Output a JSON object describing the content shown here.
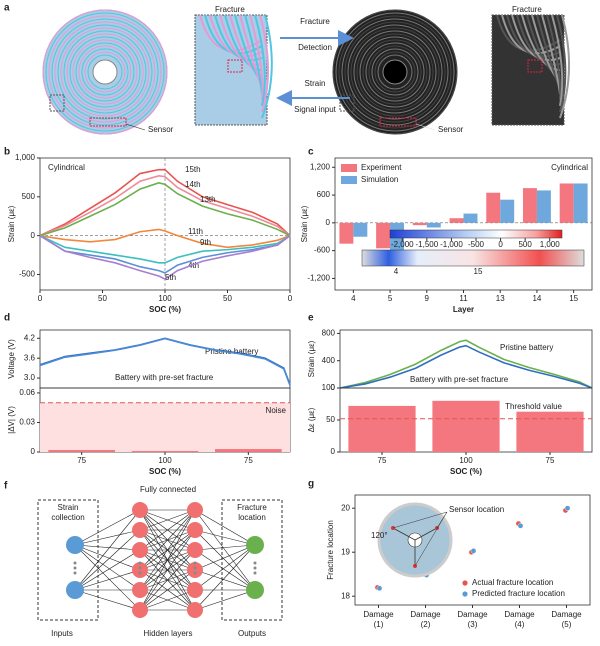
{
  "diagram_a": {
    "panel": "a",
    "fracture_left": "Fracture",
    "detection": [
      "Fracture",
      "Detection"
    ],
    "signal": [
      "Strain",
      "Signal input"
    ],
    "sensor_left": "Sensor",
    "fracture_right": "Fracture",
    "sensor_right": "Sensor"
  },
  "diagram_f": {
    "panel": "f",
    "strain_collection": [
      "Strain",
      "collection"
    ],
    "fully_connected": "Fully connected",
    "fracture_location": [
      "Fracture",
      "location"
    ],
    "inputs": "Inputs",
    "hidden": "Hidden layers",
    "outputs": "Outputs"
  },
  "chart_data": [
    {
      "type": "line",
      "panel": "b",
      "annotation": "Cylindrical",
      "xlabel": "SOC (%)",
      "ylabel": "Strain (με)",
      "x": [
        0,
        20,
        40,
        60,
        80,
        95,
        100,
        110,
        130,
        150,
        170,
        190,
        200
      ],
      "xlim": [
        0,
        200
      ],
      "xticks": [
        0,
        50,
        100,
        {
          "value": 150,
          "label": "50"
        },
        {
          "value": 200,
          "label": "0"
        }
      ],
      "ylim": [
        -700,
        1000
      ],
      "yticks": [
        {
          "value": 1000,
          "label": "1,000"
        },
        500,
        0,
        -500
      ],
      "series": [
        {
          "name": "15th",
          "color": "#e8534f",
          "values": [
            0,
            150,
            350,
            550,
            800,
            850,
            850,
            700,
            500,
            400,
            300,
            150,
            0
          ]
        },
        {
          "name": "14th",
          "color": "#f08a9a",
          "values": [
            0,
            130,
            300,
            480,
            700,
            770,
            760,
            620,
            450,
            350,
            250,
            120,
            0
          ]
        },
        {
          "name": "13th",
          "color": "#6ab04c",
          "values": [
            0,
            100,
            250,
            400,
            600,
            680,
            660,
            540,
            380,
            280,
            200,
            80,
            0
          ]
        },
        {
          "name": "11th",
          "color": "#f0883e",
          "values": [
            0,
            -50,
            -80,
            -50,
            50,
            80,
            60,
            0,
            -100,
            -150,
            -120,
            -60,
            0
          ]
        },
        {
          "name": "9th",
          "color": "#3bbfbf",
          "values": [
            0,
            -150,
            -200,
            -250,
            -300,
            -350,
            -350,
            -280,
            -200,
            -180,
            -150,
            -100,
            0
          ]
        },
        {
          "name": "4th",
          "color": "#5b8fd6",
          "values": [
            0,
            -200,
            -250,
            -300,
            -400,
            -450,
            -480,
            -380,
            -280,
            -220,
            -180,
            -120,
            0
          ]
        },
        {
          "name": "5th",
          "color": "#a77fd1",
          "values": [
            0,
            -200,
            -280,
            -350,
            -450,
            -520,
            -560,
            -450,
            -330,
            -260,
            -200,
            -120,
            0
          ]
        }
      ]
    },
    {
      "type": "bar",
      "panel": "c",
      "annotation": "Cylindrical",
      "xlabel": "Layer",
      "ylabel": "Strain (με)",
      "categories": [
        "4",
        "5",
        "9",
        "11",
        "13",
        "14",
        "15"
      ],
      "ylim": [
        -1450,
        1400
      ],
      "yticks": [
        {
          "value": 1200,
          "label": "1,200"
        },
        600,
        0,
        -600,
        {
          "value": -1200,
          "label": "-1,200"
        }
      ],
      "series": [
        {
          "name": "Experiment",
          "color": "#f4777f",
          "values": [
            -450,
            -550,
            -50,
            100,
            650,
            750,
            850
          ]
        },
        {
          "name": "Simulation",
          "color": "#6fa8dc",
          "values": [
            -300,
            -650,
            -100,
            200,
            500,
            700,
            850
          ]
        }
      ],
      "colorbar": {
        "lim": [
          -2250,
          1250
        ],
        "ticks": [
          {
            "value": -2000,
            "label": "-2,000"
          },
          {
            "value": -1500,
            "label": "-1,500"
          },
          {
            "value": -1000,
            "label": "-1,000"
          },
          -500,
          0,
          500,
          {
            "value": 1000,
            "label": "1,000"
          }
        ],
        "strip_labels": [
          "4",
          "15"
        ]
      }
    },
    {
      "type": "line",
      "panel": "d",
      "ylabel": "Voltage (V)",
      "x": [
        0,
        20,
        40,
        60,
        80,
        100,
        120,
        140,
        160,
        180,
        195,
        200
      ],
      "xlim": [
        0,
        200
      ],
      "ylim": [
        2.7,
        4.45
      ],
      "yticks": [
        {
          "value": 4.2,
          "label": "4.2"
        },
        {
          "value": 3.6,
          "label": "3.6"
        },
        {
          "value": 3,
          "label": "3.0"
        }
      ],
      "series": [
        {
          "name": "Pristine battery",
          "color": "#2f6fc1",
          "values": [
            3.4,
            3.65,
            3.75,
            3.85,
            4.0,
            4.2,
            4.0,
            3.85,
            3.75,
            3.6,
            3.3,
            2.8
          ]
        },
        {
          "name": "Battery with pre-set fracture",
          "color": "#4a8ad6",
          "values": [
            3.38,
            3.63,
            3.73,
            3.84,
            3.99,
            4.19,
            3.99,
            3.84,
            3.73,
            3.58,
            3.28,
            2.78
          ]
        }
      ]
    },
    {
      "type": "bar",
      "xlabel": "SOC (%)",
      "ylabel": "|ΔV| (V)",
      "categories": [
        "75",
        "100",
        "75"
      ],
      "ylim": [
        0,
        0.065
      ],
      "yticks": [
        0,
        0.03,
        0.06
      ],
      "color": "#f4777f",
      "values": [
        0.002,
        0.001,
        0.003
      ],
      "threshold": {
        "value": 0.05,
        "label": "Noise",
        "shaded": true
      }
    },
    {
      "type": "line",
      "panel": "e",
      "ylabel": "Strain (με)",
      "x": [
        0,
        20,
        40,
        60,
        80,
        95,
        100,
        110,
        130,
        150,
        170,
        190,
        200
      ],
      "xlim": [
        0,
        200
      ],
      "ylim": [
        0,
        850
      ],
      "yticks": [
        0,
        400,
        800
      ],
      "series": [
        {
          "name": "Pristine battery",
          "color": "#6ab04c",
          "values": [
            0,
            80,
            200,
            350,
            550,
            680,
            700,
            600,
            420,
            300,
            200,
            90,
            0
          ]
        },
        {
          "name": "Battery with pre-set fracture",
          "color": "#2f6fc1",
          "values": [
            0,
            60,
            160,
            290,
            480,
            600,
            620,
            530,
            370,
            260,
            170,
            70,
            0
          ]
        }
      ]
    },
    {
      "type": "bar",
      "xlabel": "SOC (%)",
      "ylabel": "Δε (με)",
      "categories": [
        "75",
        "100",
        "75"
      ],
      "ylim": [
        0,
        100
      ],
      "yticks": [
        0,
        50,
        100
      ],
      "color": "#f4777f",
      "values": [
        72,
        80,
        63
      ],
      "threshold": {
        "value": 52,
        "label": "Threshold value",
        "shaded": false
      }
    },
    {
      "type": "scatter",
      "panel": "g",
      "ylabel": "Fracture location",
      "categories": [
        "Damage (1)",
        "Damage (2)",
        "Damage (3)",
        "Damage (4)",
        "Damage (5)"
      ],
      "ylim": [
        17.8,
        20.3
      ],
      "yticks": [
        18,
        19,
        20
      ],
      "series": [
        {
          "name": "Actual fracture location",
          "color": "#e8534f",
          "values": [
            18.2,
            18.5,
            19.0,
            19.65,
            19.95
          ]
        },
        {
          "name": "Predicted fracture location",
          "color": "#5b9bd5",
          "values": [
            18.18,
            18.48,
            19.03,
            19.6,
            20.0
          ]
        }
      ],
      "inset": {
        "sensor": "Sensor location",
        "angle": "120°"
      }
    }
  ]
}
